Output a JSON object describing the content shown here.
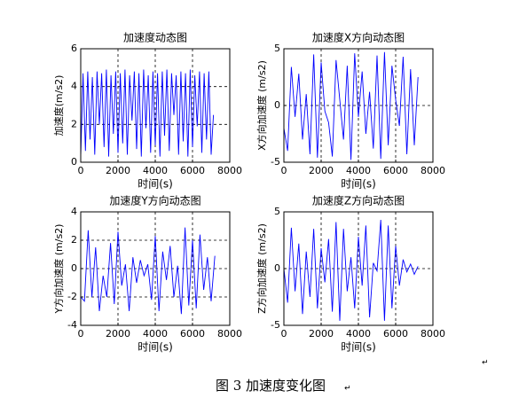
{
  "chart_data": [
    {
      "type": "line",
      "title": "加速度动态图",
      "xlabel": "时间(s)",
      "ylabel": "加速度(m/s2)",
      "xlim": [
        0,
        8000
      ],
      "xticks": [
        0,
        2000,
        4000,
        6000,
        8000
      ],
      "ylim": [
        0,
        6
      ],
      "yticks": [
        0,
        2,
        4,
        6
      ],
      "grid": true,
      "series": [
        {
          "color": "#0000ff",
          "x": [
            0,
            125,
            250,
            375,
            500,
            625,
            750,
            875,
            1000,
            1125,
            1250,
            1375,
            1500,
            1625,
            1750,
            1875,
            2000,
            2125,
            2250,
            2375,
            2500,
            2625,
            2750,
            2875,
            3000,
            3125,
            3250,
            3375,
            3500,
            3625,
            3750,
            3875,
            4000,
            4125,
            4250,
            4375,
            4500,
            4625,
            4750,
            4875,
            5000,
            5125,
            5250,
            5375,
            5500,
            5625,
            5750,
            5875,
            6000,
            6125,
            6250,
            6375,
            6500,
            6625,
            6750,
            6875,
            7000,
            7125
          ],
          "values": [
            0.3,
            4.7,
            0.6,
            4.8,
            1.2,
            4.5,
            0.4,
            4.8,
            2.0,
            4.7,
            0.8,
            4.9,
            0.3,
            4.6,
            1.5,
            4.8,
            0.5,
            4.7,
            1.0,
            4.9,
            0.4,
            4.6,
            2.2,
            4.8,
            0.7,
            4.7,
            0.3,
            4.9,
            1.8,
            4.6,
            0.5,
            4.8,
            0.9,
            4.7,
            0.3,
            4.8,
            1.4,
            4.9,
            0.6,
            4.7,
            2.5,
            4.6,
            0.4,
            4.8,
            1.1,
            4.7,
            0.3,
            4.9,
            0.8,
            4.6,
            1.9,
            4.8,
            0.5,
            4.7,
            1.2,
            4.8,
            0.4,
            2.5
          ]
        }
      ]
    },
    {
      "type": "line",
      "title": "加速度X方向动态图",
      "xlabel": "时间(s)",
      "ylabel": "X方向加速度 (m/s2)",
      "xlim": [
        0,
        8000
      ],
      "xticks": [
        0,
        2000,
        4000,
        6000,
        8000
      ],
      "ylim": [
        -5,
        5
      ],
      "yticks": [
        -5,
        0,
        5
      ],
      "grid": true,
      "series": [
        {
          "color": "#0000ff",
          "x": [
            0,
            200,
            400,
            600,
            800,
            1000,
            1200,
            1400,
            1600,
            1800,
            2000,
            2200,
            2400,
            2600,
            2800,
            3000,
            3200,
            3400,
            3600,
            3800,
            4000,
            4200,
            4400,
            4600,
            4800,
            5000,
            5200,
            5400,
            5600,
            5800,
            6000,
            6200,
            6400,
            6600,
            6800,
            7000,
            7200
          ],
          "values": [
            -2,
            -4,
            3.4,
            -1,
            2.8,
            -3,
            1,
            -4.3,
            4.5,
            -4.6,
            3.8,
            -0.5,
            -1.5,
            -4.5,
            4,
            0.5,
            -3,
            3.5,
            -4.8,
            4.6,
            -1,
            3,
            -2.5,
            1.2,
            -3.8,
            4.4,
            -4.7,
            4.7,
            -3.5,
            3.5,
            0.5,
            -1.8,
            4.3,
            -4.3,
            3.2,
            -3.5,
            2.5
          ]
        }
      ]
    },
    {
      "type": "line",
      "title": "加速度Y方向动态图",
      "xlabel": "时间(s)",
      "ylabel": "Y方向加速度 (m/s2)",
      "xlim": [
        0,
        8000
      ],
      "xticks": [
        0,
        2000,
        4000,
        6000,
        8000
      ],
      "ylim": [
        -4,
        4
      ],
      "yticks": [
        -4,
        -2,
        0,
        2,
        4
      ],
      "grid": true,
      "series": [
        {
          "color": "#0000ff",
          "x": [
            0,
            200,
            400,
            600,
            800,
            1000,
            1200,
            1400,
            1600,
            1800,
            2000,
            2200,
            2400,
            2600,
            2800,
            3000,
            3200,
            3400,
            3600,
            3800,
            4000,
            4200,
            4400,
            4600,
            4800,
            5000,
            5200,
            5400,
            5600,
            5800,
            6000,
            6200,
            6400,
            6600,
            6800,
            7000,
            7200
          ],
          "values": [
            -2,
            -2.3,
            2.7,
            -2,
            1.5,
            -3,
            -0.5,
            -2,
            1.8,
            -2.5,
            2.6,
            -1.2,
            0.3,
            -3,
            0.8,
            -1,
            0.6,
            -0.5,
            0.3,
            -2.2,
            2.3,
            -3,
            1.2,
            -0.8,
            1.6,
            -2,
            0.2,
            -3.2,
            2.9,
            -2.6,
            2,
            -2.8,
            2.4,
            -1.5,
            0.8,
            -2.3,
            0.9
          ]
        }
      ]
    },
    {
      "type": "line",
      "title": "加速度Z方向动态图",
      "xlabel": "时间(s)",
      "ylabel": "Z方向加速度 (m/s2)",
      "xlim": [
        0,
        8000
      ],
      "xticks": [
        0,
        2000,
        4000,
        6000,
        8000
      ],
      "ylim": [
        -5,
        5
      ],
      "yticks": [
        -5,
        0,
        5
      ],
      "grid": true,
      "series": [
        {
          "color": "#0000ff",
          "x": [
            0,
            200,
            400,
            600,
            800,
            1000,
            1200,
            1400,
            1600,
            1800,
            2000,
            2200,
            2400,
            2600,
            2800,
            3000,
            3200,
            3400,
            3600,
            3800,
            4000,
            4200,
            4400,
            4600,
            4800,
            5000,
            5200,
            5400,
            5600,
            5800,
            6000,
            6200,
            6400,
            6600,
            6800,
            7000,
            7200
          ],
          "values": [
            0,
            -3,
            3.6,
            -2,
            2.2,
            -4,
            1.5,
            -2.5,
            3.5,
            -3.5,
            1.8,
            -1.2,
            2.6,
            -3.8,
            4.1,
            -4.6,
            3.5,
            -2,
            1,
            -3.5,
            2.8,
            -1.5,
            3.8,
            -4.3,
            0.5,
            -0.2,
            4.3,
            -4.6,
            3.8,
            -3.5,
            2,
            -1.5,
            0.8,
            -0.3,
            0.4,
            -0.5,
            0.2
          ]
        }
      ]
    }
  ],
  "caption": "图 3  加速度变化图",
  "paragraph_marks": [
    "↵",
    "↵"
  ]
}
